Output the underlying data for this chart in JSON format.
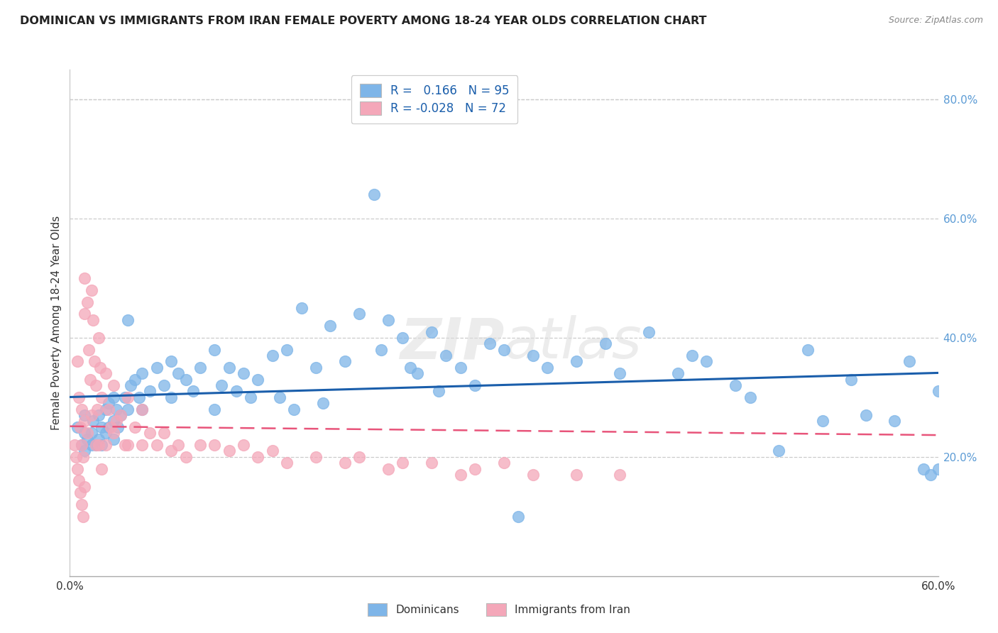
{
  "title": "DOMINICAN VS IMMIGRANTS FROM IRAN FEMALE POVERTY AMONG 18-24 YEAR OLDS CORRELATION CHART",
  "source": "Source: ZipAtlas.com",
  "ylabel": "Female Poverty Among 18-24 Year Olds",
  "xlim": [
    0.0,
    0.6
  ],
  "ylim": [
    0.0,
    0.85
  ],
  "y_tick_right_vals": [
    0.2,
    0.4,
    0.6,
    0.8
  ],
  "y_tick_right_labels": [
    "20.0%",
    "40.0%",
    "60.0%",
    "80.0%"
  ],
  "blue_R": "0.166",
  "blue_N": "95",
  "pink_R": "-0.028",
  "pink_N": "72",
  "blue_color": "#7EB5E8",
  "pink_color": "#F4A7B9",
  "blue_line_color": "#1A5EAB",
  "pink_line_color": "#E8547A",
  "legend_label1": "Dominicans",
  "legend_label2": "Immigrants from Iran",
  "watermark_zip": "ZIP",
  "watermark_atlas": "atlas",
  "blue_x": [
    0.005,
    0.008,
    0.01,
    0.01,
    0.01,
    0.012,
    0.015,
    0.015,
    0.016,
    0.018,
    0.02,
    0.02,
    0.022,
    0.022,
    0.025,
    0.025,
    0.027,
    0.027,
    0.03,
    0.03,
    0.03,
    0.032,
    0.033,
    0.035,
    0.038,
    0.04,
    0.04,
    0.042,
    0.045,
    0.048,
    0.05,
    0.05,
    0.055,
    0.06,
    0.065,
    0.07,
    0.07,
    0.075,
    0.08,
    0.085,
    0.09,
    0.1,
    0.1,
    0.105,
    0.11,
    0.115,
    0.12,
    0.125,
    0.13,
    0.14,
    0.145,
    0.15,
    0.155,
    0.16,
    0.17,
    0.175,
    0.18,
    0.19,
    0.2,
    0.21,
    0.215,
    0.22,
    0.23,
    0.235,
    0.24,
    0.25,
    0.255,
    0.26,
    0.27,
    0.28,
    0.29,
    0.3,
    0.31,
    0.32,
    0.33,
    0.35,
    0.37,
    0.38,
    0.4,
    0.42,
    0.43,
    0.44,
    0.46,
    0.47,
    0.49,
    0.51,
    0.52,
    0.54,
    0.55,
    0.57,
    0.58,
    0.59,
    0.595,
    0.6,
    0.6
  ],
  "blue_y": [
    0.25,
    0.22,
    0.27,
    0.24,
    0.21,
    0.23,
    0.24,
    0.22,
    0.26,
    0.22,
    0.27,
    0.23,
    0.25,
    0.22,
    0.28,
    0.24,
    0.29,
    0.25,
    0.3,
    0.26,
    0.23,
    0.28,
    0.25,
    0.27,
    0.3,
    0.43,
    0.28,
    0.32,
    0.33,
    0.3,
    0.34,
    0.28,
    0.31,
    0.35,
    0.32,
    0.36,
    0.3,
    0.34,
    0.33,
    0.31,
    0.35,
    0.38,
    0.28,
    0.32,
    0.35,
    0.31,
    0.34,
    0.3,
    0.33,
    0.37,
    0.3,
    0.38,
    0.28,
    0.45,
    0.35,
    0.29,
    0.42,
    0.36,
    0.44,
    0.64,
    0.38,
    0.43,
    0.4,
    0.35,
    0.34,
    0.41,
    0.31,
    0.37,
    0.35,
    0.32,
    0.39,
    0.38,
    0.1,
    0.37,
    0.35,
    0.36,
    0.39,
    0.34,
    0.41,
    0.34,
    0.37,
    0.36,
    0.32,
    0.3,
    0.21,
    0.38,
    0.26,
    0.33,
    0.27,
    0.26,
    0.36,
    0.18,
    0.17,
    0.31,
    0.18
  ],
  "pink_x": [
    0.003,
    0.004,
    0.005,
    0.005,
    0.006,
    0.006,
    0.007,
    0.007,
    0.008,
    0.008,
    0.008,
    0.009,
    0.009,
    0.01,
    0.01,
    0.01,
    0.01,
    0.012,
    0.012,
    0.013,
    0.014,
    0.015,
    0.015,
    0.016,
    0.017,
    0.018,
    0.018,
    0.019,
    0.02,
    0.02,
    0.021,
    0.022,
    0.022,
    0.025,
    0.025,
    0.027,
    0.028,
    0.03,
    0.03,
    0.032,
    0.035,
    0.038,
    0.04,
    0.04,
    0.045,
    0.05,
    0.05,
    0.055,
    0.06,
    0.065,
    0.07,
    0.075,
    0.08,
    0.09,
    0.1,
    0.11,
    0.12,
    0.13,
    0.14,
    0.15,
    0.17,
    0.19,
    0.2,
    0.22,
    0.23,
    0.25,
    0.27,
    0.28,
    0.3,
    0.32,
    0.35,
    0.38
  ],
  "pink_y": [
    0.22,
    0.2,
    0.36,
    0.18,
    0.3,
    0.16,
    0.25,
    0.14,
    0.28,
    0.22,
    0.12,
    0.2,
    0.1,
    0.5,
    0.44,
    0.26,
    0.15,
    0.46,
    0.24,
    0.38,
    0.33,
    0.48,
    0.27,
    0.43,
    0.36,
    0.32,
    0.22,
    0.28,
    0.4,
    0.22,
    0.35,
    0.3,
    0.18,
    0.34,
    0.22,
    0.28,
    0.25,
    0.32,
    0.24,
    0.26,
    0.27,
    0.22,
    0.3,
    0.22,
    0.25,
    0.28,
    0.22,
    0.24,
    0.22,
    0.24,
    0.21,
    0.22,
    0.2,
    0.22,
    0.22,
    0.21,
    0.22,
    0.2,
    0.21,
    0.19,
    0.2,
    0.19,
    0.2,
    0.18,
    0.19,
    0.19,
    0.17,
    0.18,
    0.19,
    0.17,
    0.17,
    0.17
  ]
}
